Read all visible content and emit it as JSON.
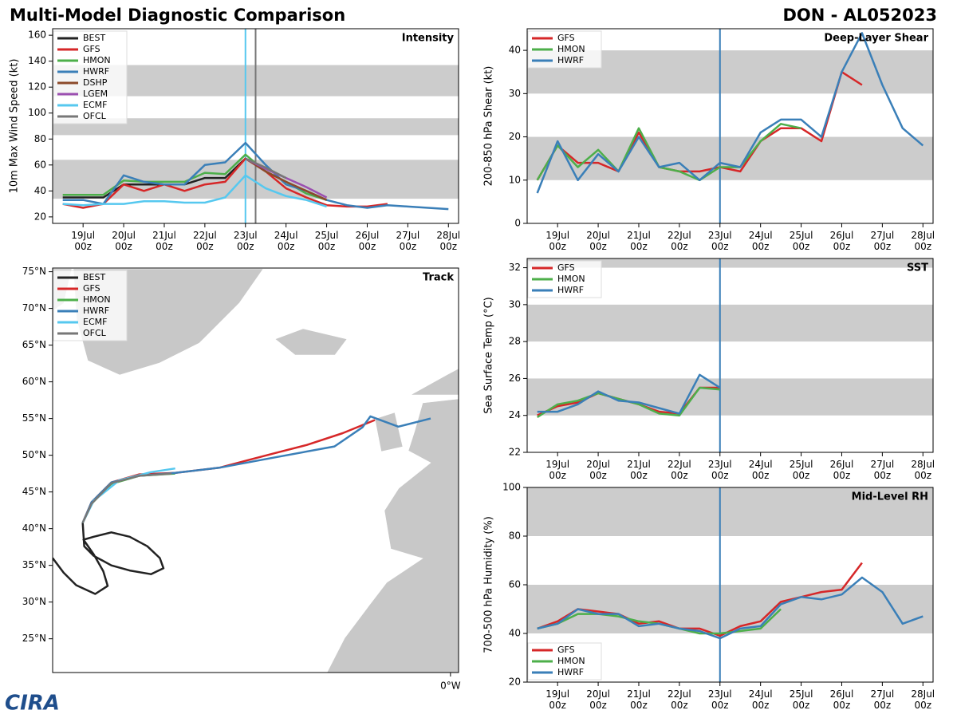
{
  "title": "Multi-Model Diagnostic Comparison",
  "storm": "DON - AL052023",
  "logo": "CIRA",
  "chart_data": [
    {
      "type": "line",
      "title": "Intensity",
      "y_label": "10m Max Wind Speed (kt)",
      "legend": "upper left",
      "categories": [
        null,
        "19Jul\n00z",
        null,
        "20Jul\n00z",
        null,
        "21Jul\n00z",
        null,
        "22Jul\n00z",
        null,
        "23Jul\n00z",
        null,
        "24Jul\n00z",
        null,
        "25Jul\n00z",
        null,
        "26Jul\n00z",
        null,
        "27Jul\n00z",
        null,
        "28Jul\n00z"
      ],
      "ylim": [
        15,
        165
      ],
      "yticks": [
        20,
        40,
        60,
        80,
        100,
        120,
        140,
        160
      ],
      "bands": [
        [
          34,
          64
        ],
        [
          83,
          96
        ],
        [
          113,
          137
        ]
      ],
      "series": [
        {
          "name": "BEST",
          "color": "#222222",
          "values": [
            35,
            35,
            35,
            45,
            45,
            45,
            45,
            50,
            50,
            65,
            null,
            null,
            null,
            null,
            null,
            null,
            null,
            null,
            null,
            null
          ]
        },
        {
          "name": "GFS",
          "color": "#d62728",
          "values": [
            30,
            27,
            30,
            45,
            40,
            45,
            40,
            45,
            47,
            65,
            55,
            42,
            35,
            29,
            28,
            28,
            30,
            null,
            null,
            null
          ]
        },
        {
          "name": "HMON",
          "color": "#4daf4a",
          "values": [
            37,
            37,
            37,
            48,
            47,
            47,
            47,
            54,
            53,
            68,
            55,
            47,
            38,
            33,
            null,
            null,
            null,
            null,
            null,
            null
          ]
        },
        {
          "name": "HWRF",
          "color": "#3a7fb8",
          "values": [
            33,
            33,
            30,
            52,
            47,
            45,
            45,
            60,
            62,
            77,
            60,
            45,
            40,
            33,
            29,
            27,
            29,
            28,
            27,
            26
          ]
        },
        {
          "name": "DSHP",
          "color": "#8c4a2a",
          "values": [
            null,
            null,
            null,
            null,
            null,
            null,
            null,
            null,
            null,
            65,
            55,
            47,
            40,
            33,
            null,
            null,
            null,
            null,
            null,
            null
          ]
        },
        {
          "name": "LGEM",
          "color": "#9b4fb0",
          "values": [
            null,
            null,
            null,
            null,
            null,
            null,
            null,
            null,
            null,
            65,
            57,
            50,
            43,
            35,
            null,
            null,
            null,
            null,
            null,
            null
          ]
        },
        {
          "name": "ECMF",
          "color": "#56c8ef",
          "values": [
            30,
            29,
            30,
            30,
            32,
            32,
            31,
            31,
            35,
            52,
            42,
            36,
            33,
            28,
            null,
            null,
            null,
            null,
            null,
            null
          ]
        },
        {
          "name": "OFCL",
          "color": "#777777",
          "values": [
            null,
            null,
            null,
            null,
            null,
            null,
            null,
            null,
            null,
            65,
            58,
            50,
            null,
            null,
            null,
            null,
            null,
            null,
            null,
            null
          ]
        }
      ]
    },
    {
      "type": "line",
      "title": "Deep-Layer Shear",
      "y_label": "200-850 hPa Shear (kt)",
      "legend": "upper left",
      "categories": [
        null,
        "19Jul\n00z",
        null,
        "20Jul\n00z",
        null,
        "21Jul\n00z",
        null,
        "22Jul\n00z",
        null,
        "23Jul\n00z",
        null,
        "24Jul\n00z",
        null,
        "25Jul\n00z",
        null,
        "26Jul\n00z",
        null,
        "27Jul\n00z",
        null,
        "28Jul\n00z"
      ],
      "ylim": [
        0,
        45
      ],
      "yticks": [
        0,
        10,
        20,
        30,
        40
      ],
      "bands": [
        [
          10,
          20
        ],
        [
          30,
          40
        ]
      ],
      "series": [
        {
          "name": "GFS",
          "color": "#d62728",
          "values": [
            10,
            18,
            14,
            14,
            12,
            21,
            13,
            12,
            12,
            13,
            12,
            19,
            22,
            22,
            19,
            35,
            32,
            null,
            null,
            null
          ]
        },
        {
          "name": "HMON",
          "color": "#4daf4a",
          "values": [
            10,
            18,
            13,
            17,
            12,
            22,
            13,
            12,
            10,
            13,
            13,
            19,
            23,
            22,
            null,
            null,
            null,
            null,
            null,
            null
          ]
        },
        {
          "name": "HWRF",
          "color": "#3a7fb8",
          "values": [
            7,
            19,
            10,
            16,
            12,
            20,
            13,
            14,
            10,
            14,
            13,
            21,
            24,
            24,
            20,
            35,
            44,
            32,
            22,
            18
          ]
        }
      ]
    },
    {
      "type": "track",
      "title": "Track",
      "legend": "upper left",
      "xlim": [
        -54.2,
        1.1
      ],
      "ylim": [
        20.4,
        75.5
      ],
      "xticks": [
        {
          "value": 0,
          "label": "0°W"
        }
      ],
      "yticks": [
        {
          "value": 25,
          "label": "25°N"
        },
        {
          "value": 30,
          "label": "30°N"
        },
        {
          "value": 35,
          "label": "35°N"
        },
        {
          "value": 40,
          "label": "40°N"
        },
        {
          "value": 45,
          "label": "45°N"
        },
        {
          "value": 50,
          "label": "50°N"
        },
        {
          "value": 55,
          "label": "55°N"
        },
        {
          "value": 60,
          "label": "60°N"
        },
        {
          "value": 65,
          "label": "65°N"
        },
        {
          "value": 70,
          "label": "70°N"
        },
        {
          "value": 75,
          "label": "75°N"
        }
      ],
      "series": [
        {
          "name": "BEST",
          "color": "#222222",
          "x": [
            -54.2,
            -52.7,
            -51.0,
            -48.4,
            -46.7,
            -47.3,
            -48.6,
            -50.0,
            -48.6,
            -46.2,
            -43.7,
            -41.3,
            -39.6,
            -39.1,
            -40.8,
            -43.7,
            -46.2,
            -48.6,
            -49.9,
            -50.1
          ],
          "values": [
            36.0,
            34.0,
            32.3,
            31.1,
            32.2,
            34.2,
            36.5,
            38.5,
            38.9,
            39.5,
            38.9,
            37.6,
            36.0,
            34.6,
            33.8,
            34.3,
            35.0,
            36.3,
            37.6,
            40.8
          ]
        },
        {
          "name": "GFS",
          "color": "#d62728",
          "x": [
            -50.1,
            -48.9,
            -46.2,
            -42.4,
            -37.5,
            -31.5,
            -27.7,
            -23.9,
            -19.6,
            -14.7,
            -10.3
          ],
          "values": [
            40.8,
            43.6,
            46.3,
            47.4,
            47.6,
            48.3,
            49.3,
            50.3,
            51.4,
            53.0,
            54.8
          ]
        },
        {
          "name": "HMON",
          "color": "#4daf4a",
          "x": [
            -50.1,
            -48.9,
            -46.2,
            -42.4,
            -37.5
          ],
          "values": [
            40.8,
            43.4,
            46.1,
            47.2,
            47.5
          ]
        },
        {
          "name": "HWRF",
          "color": "#3a7fb8",
          "x": [
            -50.1,
            -48.9,
            -46.2,
            -42.4,
            -37.5,
            -31.5,
            -24.5,
            -15.8,
            -12.0,
            -10.9,
            -7.1,
            -2.7
          ],
          "values": [
            40.8,
            43.6,
            46.3,
            47.2,
            47.6,
            48.3,
            49.6,
            51.2,
            53.8,
            55.3,
            53.9,
            55.0
          ]
        },
        {
          "name": "ECMF",
          "color": "#56c8ef",
          "x": [
            -50.1,
            -48.6,
            -45.1,
            -40.8,
            -37.5
          ],
          "values": [
            40.8,
            43.8,
            46.6,
            47.7,
            48.2
          ]
        },
        {
          "name": "OFCL",
          "color": "#777777",
          "x": [
            -50.1,
            -48.9,
            -46.2,
            -42.4,
            -38.0
          ],
          "values": [
            40.8,
            43.4,
            46.2,
            47.2,
            47.5
          ]
        }
      ]
    },
    {
      "type": "line",
      "title": "SST",
      "y_label": "Sea Surface Temp (°C)",
      "legend": "upper left",
      "categories": [
        null,
        "19Jul\n00z",
        null,
        "20Jul\n00z",
        null,
        "21Jul\n00z",
        null,
        "22Jul\n00z",
        null,
        "23Jul\n00z",
        null,
        "24Jul\n00z",
        null,
        "25Jul\n00z",
        null,
        "26Jul\n00z",
        null,
        "27Jul\n00z",
        null,
        "28Jul\n00z"
      ],
      "ylim": [
        22,
        32.5
      ],
      "yticks": [
        22,
        24,
        26,
        28,
        30,
        32
      ],
      "bands": [
        [
          24,
          26
        ],
        [
          28,
          30
        ],
        [
          32,
          34
        ]
      ],
      "series": [
        {
          "name": "GFS",
          "color": "#d62728",
          "values": [
            24.0,
            24.5,
            24.7,
            25.2,
            24.9,
            24.6,
            24.2,
            24.1,
            25.5,
            25.5,
            null,
            null,
            null,
            null,
            null,
            null,
            null,
            null,
            null,
            null
          ]
        },
        {
          "name": "HMON",
          "color": "#4daf4a",
          "values": [
            23.9,
            24.6,
            24.8,
            25.2,
            24.9,
            24.6,
            24.1,
            24.0,
            25.5,
            25.4,
            null,
            null,
            null,
            null,
            null,
            null,
            null,
            null,
            null,
            null
          ]
        },
        {
          "name": "HWRF",
          "color": "#3a7fb8",
          "values": [
            24.2,
            24.2,
            24.6,
            25.3,
            24.8,
            24.7,
            24.4,
            24.1,
            26.2,
            25.5,
            null,
            null,
            null,
            null,
            null,
            null,
            null,
            null,
            null,
            null
          ]
        }
      ]
    },
    {
      "type": "line",
      "title": "Mid-Level RH",
      "y_label": "700-500 hPa Humidity (%)",
      "legend": "lower left",
      "categories": [
        null,
        "19Jul\n00z",
        null,
        "20Jul\n00z",
        null,
        "21Jul\n00z",
        null,
        "22Jul\n00z",
        null,
        "23Jul\n00z",
        null,
        "24Jul\n00z",
        null,
        "25Jul\n00z",
        null,
        "26Jul\n00z",
        null,
        "27Jul\n00z",
        null,
        "28Jul\n00z"
      ],
      "ylim": [
        20,
        100
      ],
      "yticks": [
        20,
        40,
        60,
        80,
        100
      ],
      "bands": [
        [
          40,
          60
        ],
        [
          80,
          100
        ]
      ],
      "series": [
        {
          "name": "GFS",
          "color": "#d62728",
          "values": [
            42,
            45,
            50,
            49,
            48,
            44,
            45,
            42,
            42,
            39,
            43,
            45,
            53,
            55,
            57,
            58,
            69,
            null,
            null,
            null
          ]
        },
        {
          "name": "HMON",
          "color": "#4daf4a",
          "values": [
            42,
            44,
            48,
            48,
            47,
            45,
            44,
            42,
            40,
            40,
            41,
            42,
            50,
            null,
            null,
            null,
            null,
            null,
            null,
            null
          ]
        },
        {
          "name": "HWRF",
          "color": "#3a7fb8",
          "values": [
            42,
            44,
            50,
            48,
            48,
            43,
            44,
            42,
            41,
            38,
            42,
            43,
            52,
            55,
            54,
            56,
            63,
            57,
            44,
            47
          ]
        }
      ]
    }
  ]
}
